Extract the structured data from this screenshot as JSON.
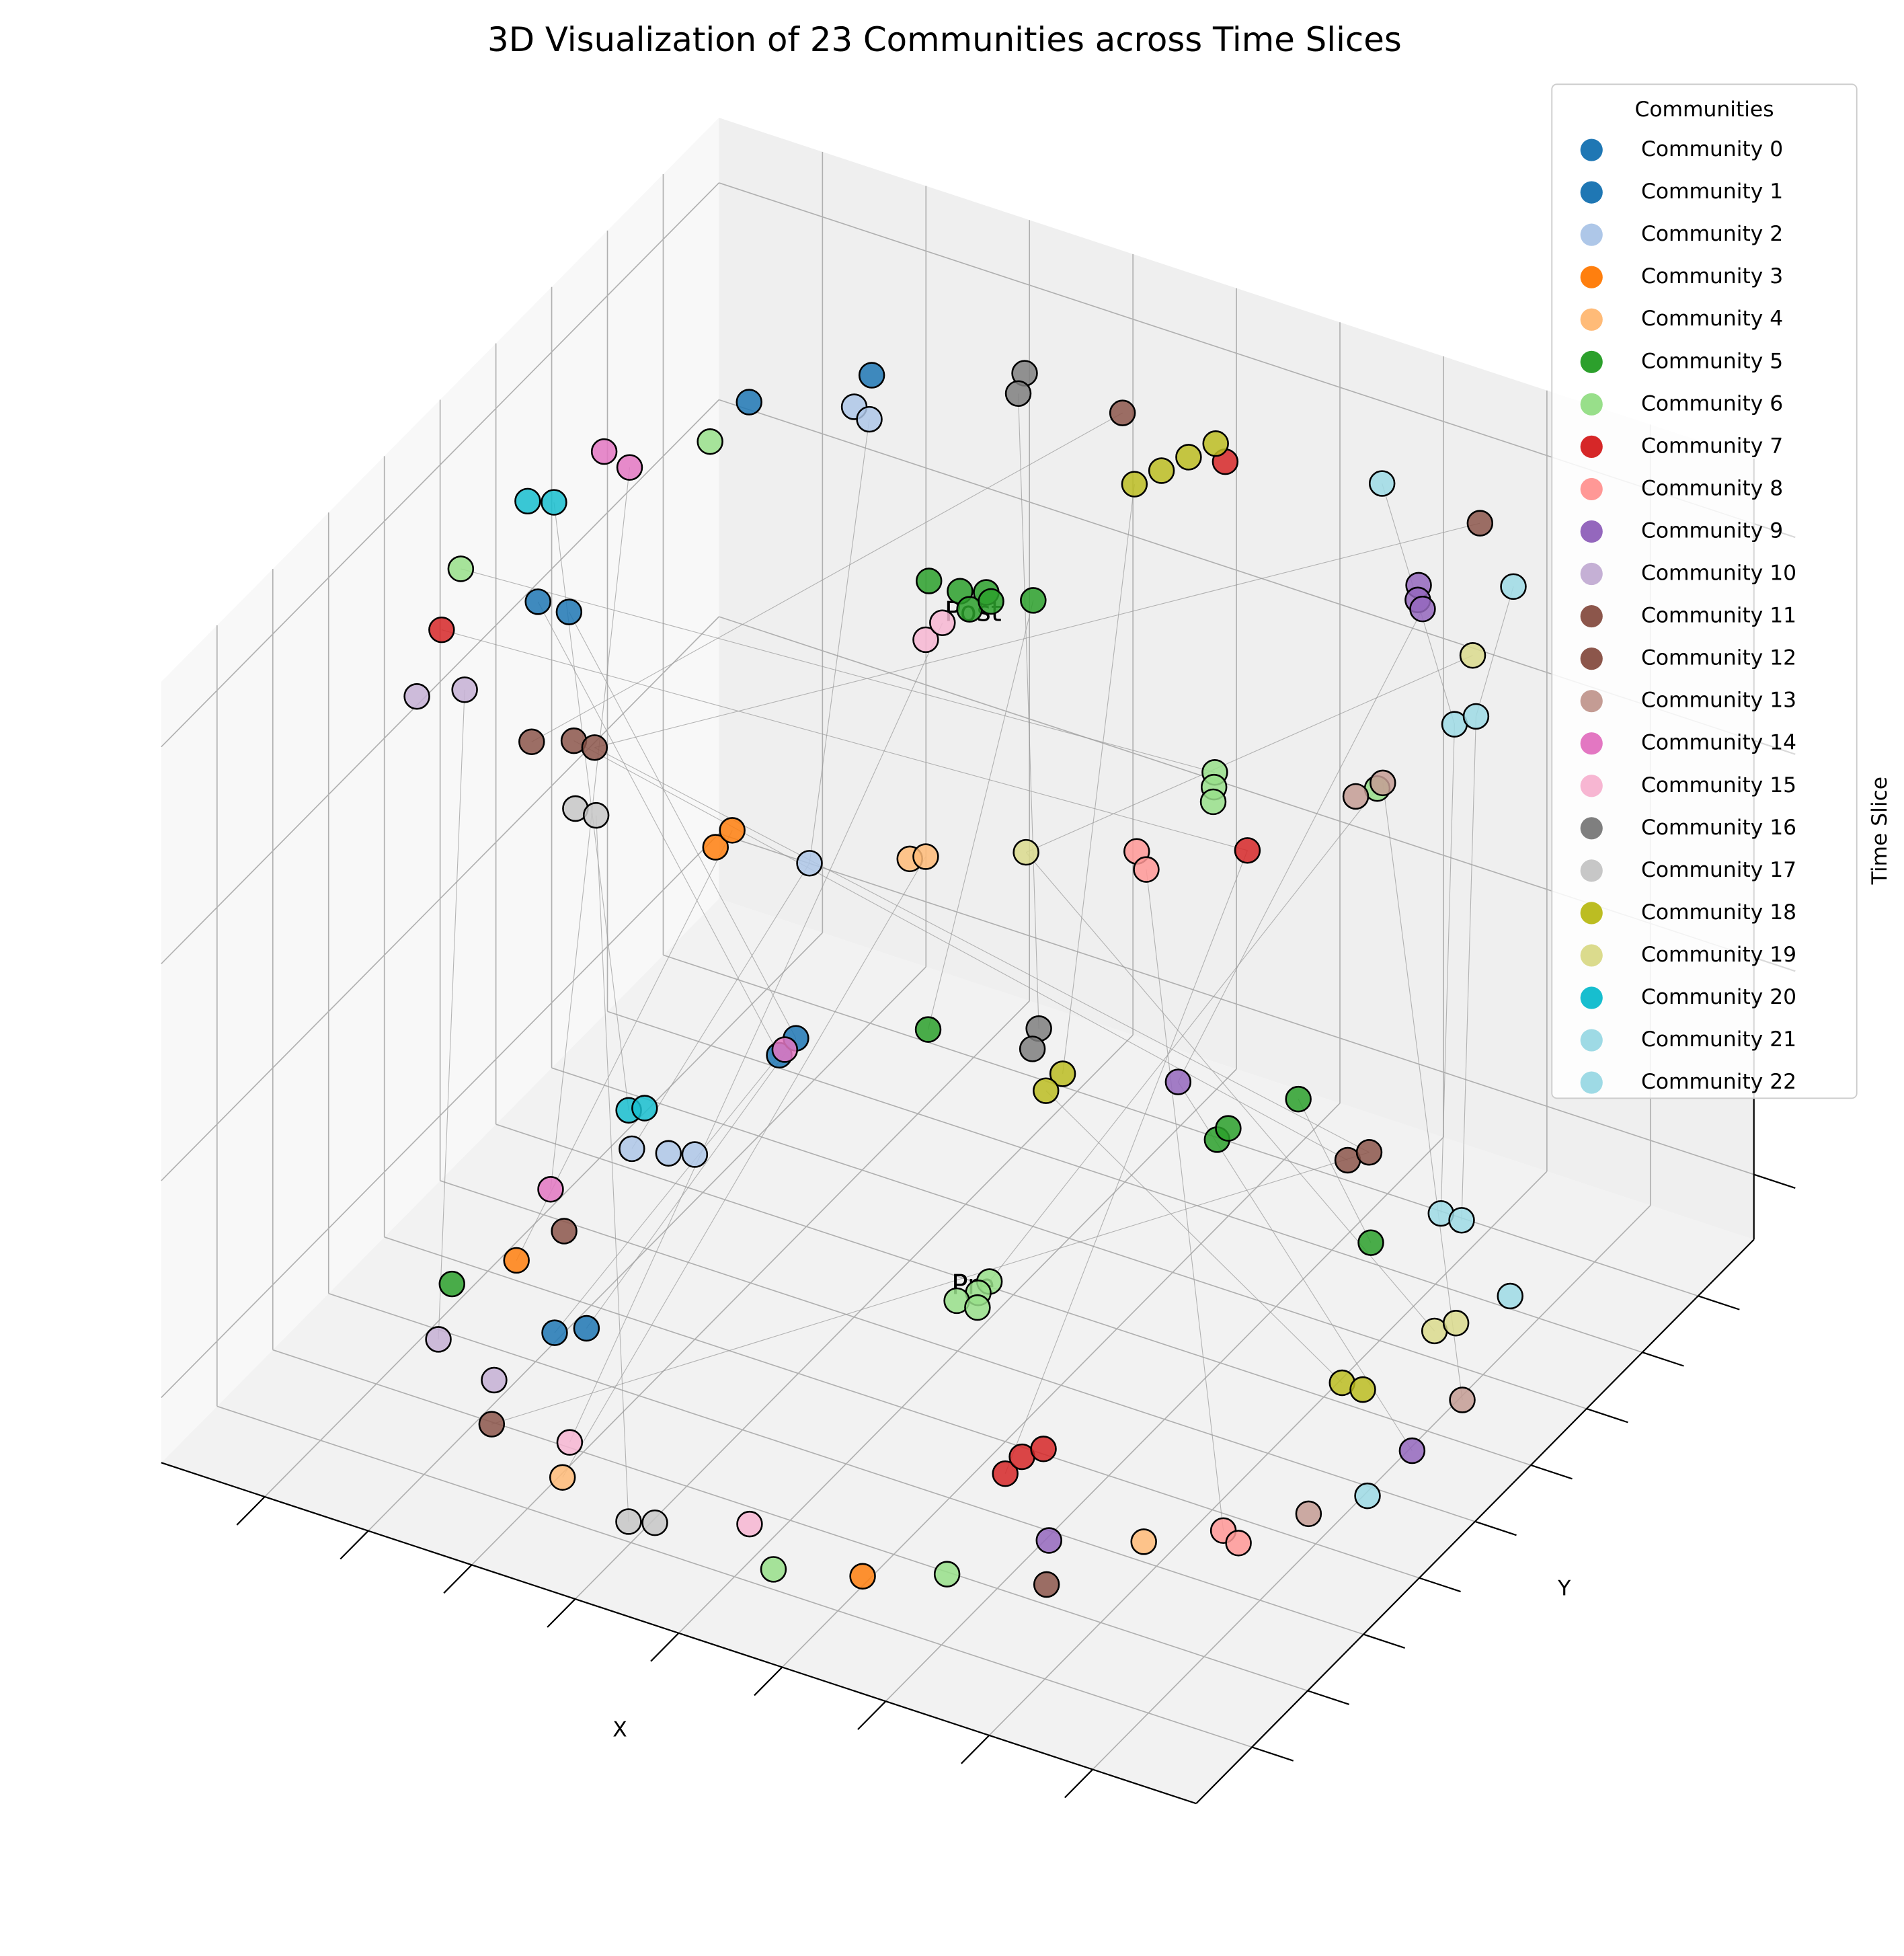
{
  "chart_data": {
    "type": "scatter3d",
    "title": "3D Visualization of 23 Communities across Time Slices",
    "xlabel": "X",
    "ylabel": "Y",
    "zlabel": "Time Slice",
    "legend_title": "Communities",
    "legend": "upper right",
    "grid": true,
    "annotations": [
      "Pre",
      "Post"
    ],
    "xlim": [
      0,
      10
    ],
    "ylim": [
      0,
      10
    ],
    "zlim": [
      -0.3,
      3.3
    ],
    "xticks": [
      1,
      2,
      3,
      4,
      5,
      6,
      7,
      8,
      9
    ],
    "yticks": [
      1,
      2,
      3,
      4,
      5,
      6,
      7,
      8,
      9
    ],
    "zticks": [
      0,
      1,
      2,
      3
    ],
    "series": [
      {
        "name": "Community 0",
        "color": "#1f77b4",
        "x": [
          1.8,
          1.7,
          3.6,
          2.4
        ],
        "y": [
          7.2,
          3.6,
          4.4,
          2.6
        ],
        "z": [
          3,
          3,
          1,
          0
        ]
      },
      {
        "name": "Community 1",
        "color": "#1f77b4",
        "x": [
          2.5,
          2.0,
          3.6,
          2.6
        ],
        "y": [
          8.1,
          3.6,
          4.7,
          2.8
        ],
        "z": [
          3,
          3,
          1,
          0
        ]
      },
      {
        "name": "Community 2",
        "color": "#aec7e8",
        "x": [
          2.6,
          2.8,
          4.0,
          3.2,
          3.5,
          3.7
        ],
        "y": [
          7.6,
          7.5,
          4.2,
          2.5,
          2.6,
          2.7
        ],
        "z": [
          3,
          3,
          2,
          1,
          1,
          1
        ]
      },
      {
        "name": "Community 3",
        "color": "#ff7f0e",
        "x": [
          3.2,
          3.2,
          1.6,
          6.4
        ],
        "y": [
          4.0,
          4.3,
          3.4,
          0.7
        ],
        "z": [
          2,
          2,
          0,
          0
        ]
      },
      {
        "name": "Community 4",
        "color": "#ffbb78",
        "x": [
          4.7,
          4.8,
          3.5,
          8.2
        ],
        "y": [
          4.7,
          4.8,
          0.7,
          2.4
        ],
        "z": [
          2,
          2,
          0,
          0
        ]
      },
      {
        "name": "Community 5",
        "color": "#2ca02c",
        "x": [
          4.4,
          4.7,
          4.9,
          4.9,
          5.0,
          5.3,
          4.5,
          7.4,
          7.4,
          7.7,
          7.7,
          1.3
        ],
        "y": [
          5.6,
          5.6,
          5.7,
          5.4,
          5.6,
          5.8,
          5.4,
          5.2,
          5.4,
          6.1,
          7.4,
          2.8
        ],
        "z": [
          3,
          3,
          3,
          3,
          3,
          3,
          1,
          1,
          1,
          1,
          0,
          0
        ]
      },
      {
        "name": "Community 6",
        "color": "#98df8a",
        "x": [
          1.8,
          0.9,
          6.3,
          6.4,
          6.5,
          7.6,
          5.2,
          5.2,
          5.1,
          5.3,
          5.7,
          7.0
        ],
        "y": [
          6.5,
          3.7,
          7.2,
          7.0,
          6.8,
          7.7,
          5.2,
          5.0,
          4.8,
          4.8,
          0.4,
          1.1
        ],
        "z": [
          3,
          3,
          2,
          2,
          2,
          2,
          0,
          0,
          0,
          0,
          0,
          0
        ]
      },
      {
        "name": "Community 7",
        "color": "#d62728",
        "x": [
          5.7,
          1.2,
          7.1,
          6.7,
          6.7,
          6.8
        ],
        "y": [
          8.5,
          2.8,
          6.3,
          2.7,
          3.0,
          3.2
        ],
        "z": [
          3,
          3,
          2,
          0,
          0,
          0
        ]
      },
      {
        "name": "Community 8",
        "color": "#ff9896",
        "x": [
          6.3,
          6.5,
          8.7,
          8.9
        ],
        "y": [
          5.8,
          5.6,
          2.9,
          2.8
        ],
        "z": [
          2,
          2,
          0,
          0
        ]
      },
      {
        "name": "Community 9",
        "color": "#9467bd",
        "x": [
          8.0,
          8.1,
          8.2,
          6.7,
          9.5,
          7.5
        ],
        "y": [
          7.7,
          7.5,
          7.4,
          5.8,
          4.8,
          2.0
        ],
        "z": [
          3,
          3,
          3,
          1,
          0,
          0
        ]
      },
      {
        "name": "Community 10",
        "color": "#c5b0d5",
        "x": [
          1.5,
          1.8,
          1.6,
          2.3
        ],
        "y": [
          1.8,
          2.1,
          2.0,
          1.7
        ],
        "z": [
          3,
          3,
          0,
          0
        ]
      },
      {
        "name": "Community 11",
        "color": "#8c564b",
        "x": [
          4.6,
          1.1,
          1.4,
          8.5,
          3.3
        ],
        "y": [
          8.7,
          4.6,
          4.8,
          5.5,
          1.1
        ],
        "z": [
          3,
          2,
          2,
          1,
          1
        ]
      },
      {
        "name": "Community 12",
        "color": "#8c564b",
        "x": [
          8.0,
          1.6,
          8.6,
          2.6,
          7.8
        ],
        "y": [
          8.8,
          4.8,
          5.7,
          1.1,
          1.4
        ],
        "z": [
          3,
          2,
          1,
          0,
          0
        ]
      },
      {
        "name": "Community 13",
        "color": "#c49c94",
        "x": [
          7.5,
          7.6,
          9.5,
          9.2
        ],
        "y": [
          7.5,
          7.8,
          5.7,
          3.5
        ],
        "z": [
          2,
          2,
          0,
          0
        ]
      },
      {
        "name": "Community 14",
        "color": "#e377c2",
        "x": [
          1.1,
          1.4,
          2.9,
          3.6
        ],
        "y": [
          5.9,
          5.8,
          1.6,
          4.5
        ],
        "z": [
          3,
          3,
          1,
          1
        ]
      },
      {
        "name": "Community 15",
        "color": "#f7b6d2",
        "x": [
          4.8,
          4.8,
          3.3,
          5.2
        ],
        "y": [
          4.8,
          5.1,
          1.2,
          0.9
        ],
        "z": [
          3,
          3,
          0,
          0
        ]
      },
      {
        "name": "Community 16",
        "color": "#7f7f7f",
        "x": [
          3.6,
          3.7,
          5.3,
          5.4
        ],
        "y": [
          8.8,
          8.5,
          5.9,
          5.6
        ],
        "z": [
          3,
          3,
          1,
          1
        ]
      },
      {
        "name": "Community 17",
        "color": "#c7c7c7",
        "x": [
          1.9,
          2.1,
          4.3,
          4.5
        ],
        "y": [
          3.9,
          3.9,
          0.4,
          0.5
        ],
        "z": [
          2,
          2,
          0,
          0
        ]
      },
      {
        "name": "Community 18",
        "color": "#bcbd22",
        "x": [
          5.5,
          5.4,
          5.3,
          5.2,
          5.8,
          5.8,
          8.5,
          8.7
        ],
        "y": [
          8.7,
          8.4,
          8.1,
          7.8,
          5.4,
          5.1,
          5.4,
          5.4
        ],
        "z": [
          3,
          3,
          3,
          3,
          1,
          1,
          0,
          0
        ]
      },
      {
        "name": "Community 19",
        "color": "#dbdb8d",
        "x": [
          8.9,
          5.5,
          8.8,
          8.9
        ],
        "y": [
          7.0,
          5.3,
          6.5,
          6.7
        ],
        "z": [
          3,
          2,
          0,
          0
        ]
      },
      {
        "name": "Community 20",
        "color": "#17becf",
        "x": [
          0.9,
          1.1,
          2.9,
          3.0
        ],
        "y": [
          4.9,
          5.0,
          3.0,
          3.1
        ],
        "z": [
          3,
          3,
          1,
          1
        ]
      },
      {
        "name": "Community 21",
        "color": "#9edae5",
        "x": [
          7.0,
          7.7,
          8.0,
          9.5
        ],
        "y": [
          8.9,
          8.9,
          8.1,
          4.0
        ],
        "z": [
          3,
          2,
          0,
          0
        ]
      },
      {
        "name": "Community 22",
        "color": "#9edae5",
        "x": [
          8.7,
          7.8,
          8.2,
          9.1
        ],
        "y": [
          8.1,
          9.1,
          8.1,
          7.3
        ],
        "z": [
          3,
          2,
          0,
          0
        ]
      }
    ]
  }
}
